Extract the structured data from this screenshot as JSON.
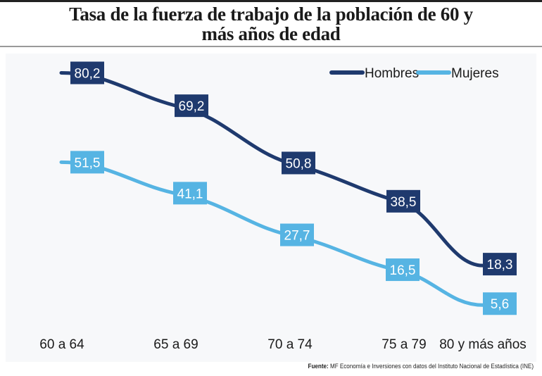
{
  "chart_data": {
    "type": "line",
    "title": "Tasa de la fuerza de trabajo de la población de 60 y más años de edad",
    "title_lines": [
      "Tasa de la fuerza de trabajo de la población de 60 y",
      "más años de edad"
    ],
    "categories": [
      "60 a 64",
      "65 a 69",
      "70 a 74",
      "75 a 79",
      "80 y más años"
    ],
    "series": [
      {
        "name": "Hombres",
        "values": [
          80.2,
          69.2,
          50.8,
          38.5,
          18.3
        ],
        "labels": [
          "80,2",
          "69,2",
          "50,8",
          "38,5",
          "18,3"
        ],
        "color": "#1f3a6e"
      },
      {
        "name": "Mujeres",
        "values": [
          51.5,
          41.1,
          27.7,
          16.5,
          5.6
        ],
        "labels": [
          "51,5",
          "41,1",
          "27,7",
          "16,5",
          "5,6"
        ],
        "color": "#56b4e3"
      }
    ],
    "xlabel": "",
    "ylabel": "",
    "ylim": [
      0,
      85
    ],
    "grid": false,
    "legend": "top-right",
    "data_labels": true
  },
  "source": {
    "label": "Fuente:",
    "text": "MF Economía e Inversiones con datos del Instituto Nacional de Estadística (INE)"
  }
}
